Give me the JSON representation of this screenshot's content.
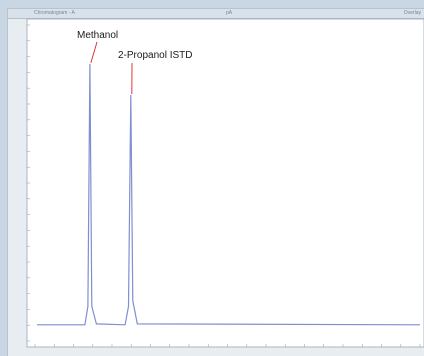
{
  "window": {
    "title_left": "Chromatogram - A",
    "title_mid": "pA",
    "title_right": "Overlay"
  },
  "colors": {
    "trace": "#7f8fd0",
    "leader": "#e02020",
    "axis": "#9aa6b4",
    "plot_bg": "#ffffff",
    "frame_bg": "#e8edf2"
  },
  "chart_data": {
    "type": "line",
    "title": "",
    "xlabel": "",
    "ylabel": "",
    "xlim": [
      0,
      10
    ],
    "ylim": [
      0,
      100
    ],
    "grid": false,
    "series": [
      {
        "x": [
          0,
          1.25,
          1.33,
          1.38,
          1.43,
          1.55,
          2.3,
          2.39,
          2.45,
          2.5,
          2.62,
          10
        ],
        "values": [
          1.5,
          1.5,
          8,
          94,
          8,
          1.8,
          1.5,
          8,
          83,
          10,
          1.8,
          1.5
        ]
      }
    ],
    "annotations": [
      {
        "text": "Methanol",
        "x": 1.38,
        "y": 94
      },
      {
        "text": "2-Propanol ISTD",
        "x": 2.45,
        "y": 83
      }
    ]
  }
}
